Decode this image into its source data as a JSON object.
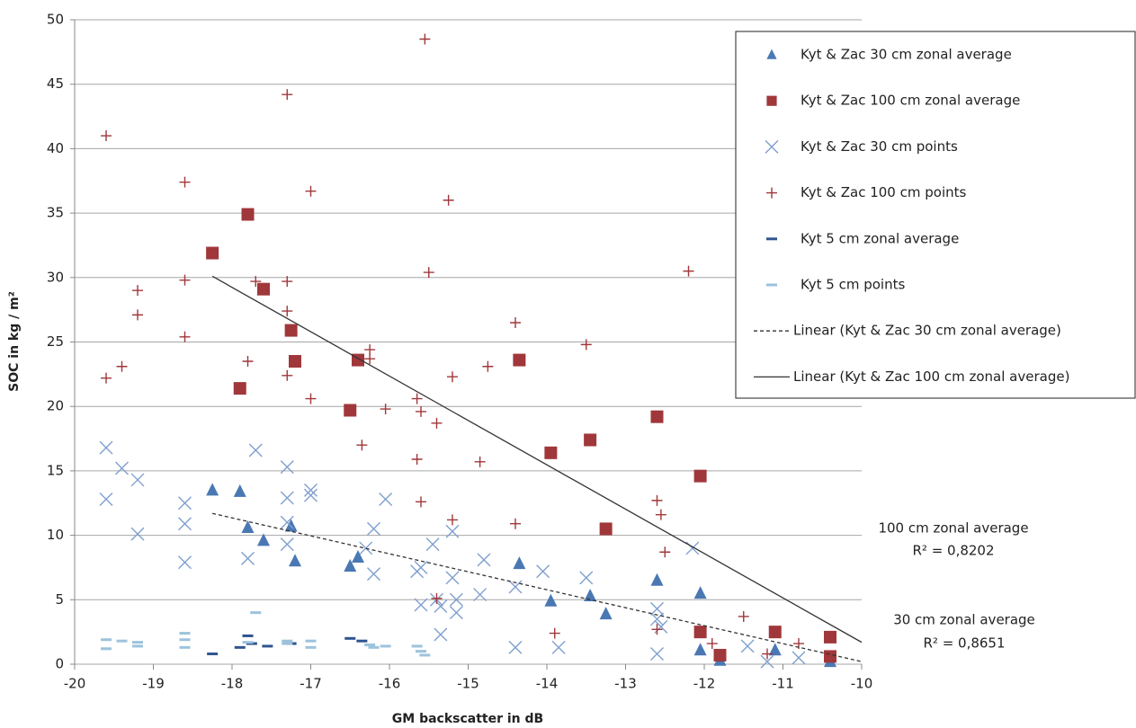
{
  "chart_data": {
    "type": "scatter",
    "x_label": "GM backscatter in dB",
    "y_label": "SOC in kg / m²",
    "xlim": [
      -20,
      -10
    ],
    "xticks": [
      -20,
      -19,
      -18,
      -17,
      -16,
      -15,
      -14,
      -13,
      -12,
      -11,
      -10
    ],
    "ylim": [
      0,
      50
    ],
    "yticks": [
      0,
      5,
      10,
      15,
      20,
      25,
      30,
      35,
      40,
      45,
      50
    ],
    "grid": true,
    "legend": "right",
    "annotations": [
      "100 cm zonal average",
      "R² = 0,8202",
      "30 cm zonal average",
      "R² = 0,8651"
    ],
    "series": [
      {
        "name": "Kyt & Zac 30 cm zonal average",
        "color": "#4a78b3",
        "marker": "triangle",
        "x": [
          -18.25,
          -17.9,
          -17.8,
          -17.6,
          -17.25,
          -17.2,
          -16.5,
          -16.4,
          -14.35,
          -13.95,
          -13.45,
          -13.25,
          -12.6,
          -12.05,
          -12.05,
          -11.8,
          -11.1,
          -10.4
        ],
        "values": [
          13.5,
          13.4,
          10.6,
          9.6,
          10.7,
          8.0,
          7.6,
          8.3,
          7.8,
          4.9,
          5.3,
          3.9,
          6.5,
          5.5,
          1.1,
          0.3,
          1.1,
          0.2
        ]
      },
      {
        "name": "Kyt & Zac 100 cm zonal average",
        "color": "#a0373a",
        "marker": "square",
        "x": [
          -18.25,
          -17.8,
          -17.9,
          -17.6,
          -17.25,
          -17.2,
          -16.5,
          -16.4,
          -14.35,
          -13.95,
          -13.45,
          -13.25,
          -12.6,
          -12.05,
          -12.05,
          -11.8,
          -11.1,
          -10.4,
          -10.4
        ],
        "values": [
          31.9,
          34.9,
          21.4,
          29.1,
          25.9,
          23.5,
          19.7,
          23.6,
          23.6,
          16.4,
          17.4,
          10.5,
          19.2,
          14.6,
          2.5,
          0.7,
          2.5,
          2.1,
          0.6
        ]
      },
      {
        "name": "Kyt & Zac 30 cm points",
        "color": "#7f9fce",
        "marker": "x",
        "x": [
          -19.6,
          -19.6,
          -19.4,
          -19.2,
          -19.2,
          -18.6,
          -18.6,
          -18.6,
          -17.8,
          -17.7,
          -17.3,
          -17.3,
          -17.3,
          -17.3,
          -17.0,
          -17.0,
          -16.3,
          -16.2,
          -16.2,
          -16.05,
          -15.65,
          -15.6,
          -15.6,
          -15.45,
          -15.4,
          -15.35,
          -15.35,
          -15.2,
          -15.2,
          -15.15,
          -15.15,
          -14.85,
          -14.8,
          -14.4,
          -14.4,
          -14.05,
          -13.85,
          -13.5,
          -12.6,
          -12.6,
          -12.55,
          -12.6,
          -12.15,
          -11.45,
          -11.2,
          -10.8
        ],
        "values": [
          16.8,
          12.8,
          15.2,
          14.3,
          10.1,
          12.5,
          10.9,
          7.9,
          8.2,
          16.6,
          15.3,
          12.9,
          11.0,
          9.3,
          13.5,
          13.1,
          9.0,
          10.5,
          7.0,
          12.8,
          7.2,
          7.5,
          4.6,
          9.3,
          5.0,
          4.5,
          2.3,
          10.3,
          6.7,
          5.0,
          4.0,
          5.4,
          8.1,
          6.0,
          1.3,
          7.2,
          1.3,
          6.7,
          4.3,
          3.5,
          2.9,
          0.8,
          9.0,
          1.4,
          0.2,
          0.5
        ]
      },
      {
        "name": "Kyt & Zac 100 cm points",
        "color": "#a0373a",
        "marker": "plus",
        "x": [
          -19.6,
          -19.6,
          -19.4,
          -19.2,
          -19.2,
          -18.6,
          -18.6,
          -18.6,
          -17.8,
          -17.7,
          -17.3,
          -17.3,
          -17.3,
          -17.3,
          -17.0,
          -17.0,
          -16.35,
          -16.25,
          -16.25,
          -16.05,
          -15.65,
          -15.65,
          -15.6,
          -15.6,
          -15.55,
          -15.5,
          -15.4,
          -15.4,
          -15.25,
          -15.2,
          -15.2,
          -14.85,
          -14.75,
          -14.4,
          -14.4,
          -13.9,
          -13.5,
          -12.6,
          -12.55,
          -12.5,
          -12.6,
          -12.2,
          -11.9,
          -11.5,
          -11.2,
          -10.8
        ],
        "values": [
          41.0,
          22.2,
          23.1,
          29.0,
          27.1,
          37.4,
          29.8,
          25.4,
          23.5,
          29.7,
          44.2,
          29.7,
          27.4,
          22.4,
          36.7,
          20.6,
          17.0,
          24.4,
          23.7,
          19.8,
          20.6,
          15.9,
          19.6,
          12.6,
          48.5,
          30.4,
          18.7,
          5.1,
          36.0,
          22.3,
          11.2,
          15.7,
          23.1,
          26.5,
          10.9,
          2.4,
          24.8,
          12.7,
          11.6,
          8.7,
          2.7,
          30.5,
          1.6,
          3.7,
          0.8,
          1.6
        ]
      },
      {
        "name": "Kyt 5 cm zonal average",
        "color": "#2f5590",
        "marker": "dash",
        "x": [
          -18.25,
          -17.9,
          -17.8,
          -17.75,
          -17.55,
          -17.25,
          -16.5,
          -16.35
        ],
        "values": [
          0.8,
          1.3,
          2.2,
          1.6,
          1.4,
          1.6,
          2.0,
          1.8
        ]
      },
      {
        "name": "Kyt 5 cm points",
        "color": "#9cc3dc",
        "marker": "dash",
        "x": [
          -19.6,
          -19.6,
          -19.4,
          -19.2,
          -19.2,
          -18.6,
          -18.6,
          -18.6,
          -17.7,
          -17.8,
          -17.3,
          -17.3,
          -17.0,
          -17.0,
          -16.25,
          -16.2,
          -16.05,
          -15.65,
          -15.6,
          -15.55
        ],
        "values": [
          1.9,
          1.2,
          1.8,
          1.7,
          1.4,
          2.4,
          1.9,
          1.3,
          4.0,
          1.7,
          1.8,
          1.6,
          1.8,
          1.3,
          1.5,
          1.3,
          1.4,
          1.4,
          1.0,
          0.7
        ]
      },
      {
        "name": "Linear (Kyt & Zac 30 cm zonal average)",
        "color": "#333333",
        "marker": "line-dashed",
        "x": [
          -18.25,
          -10
        ],
        "values": [
          11.7,
          0.2
        ]
      },
      {
        "name": "Linear (Kyt & Zac 100 cm zonal average)",
        "color": "#333333",
        "marker": "line-solid",
        "x": [
          -18.25,
          -10
        ],
        "values": [
          30.1,
          1.7
        ]
      }
    ]
  }
}
